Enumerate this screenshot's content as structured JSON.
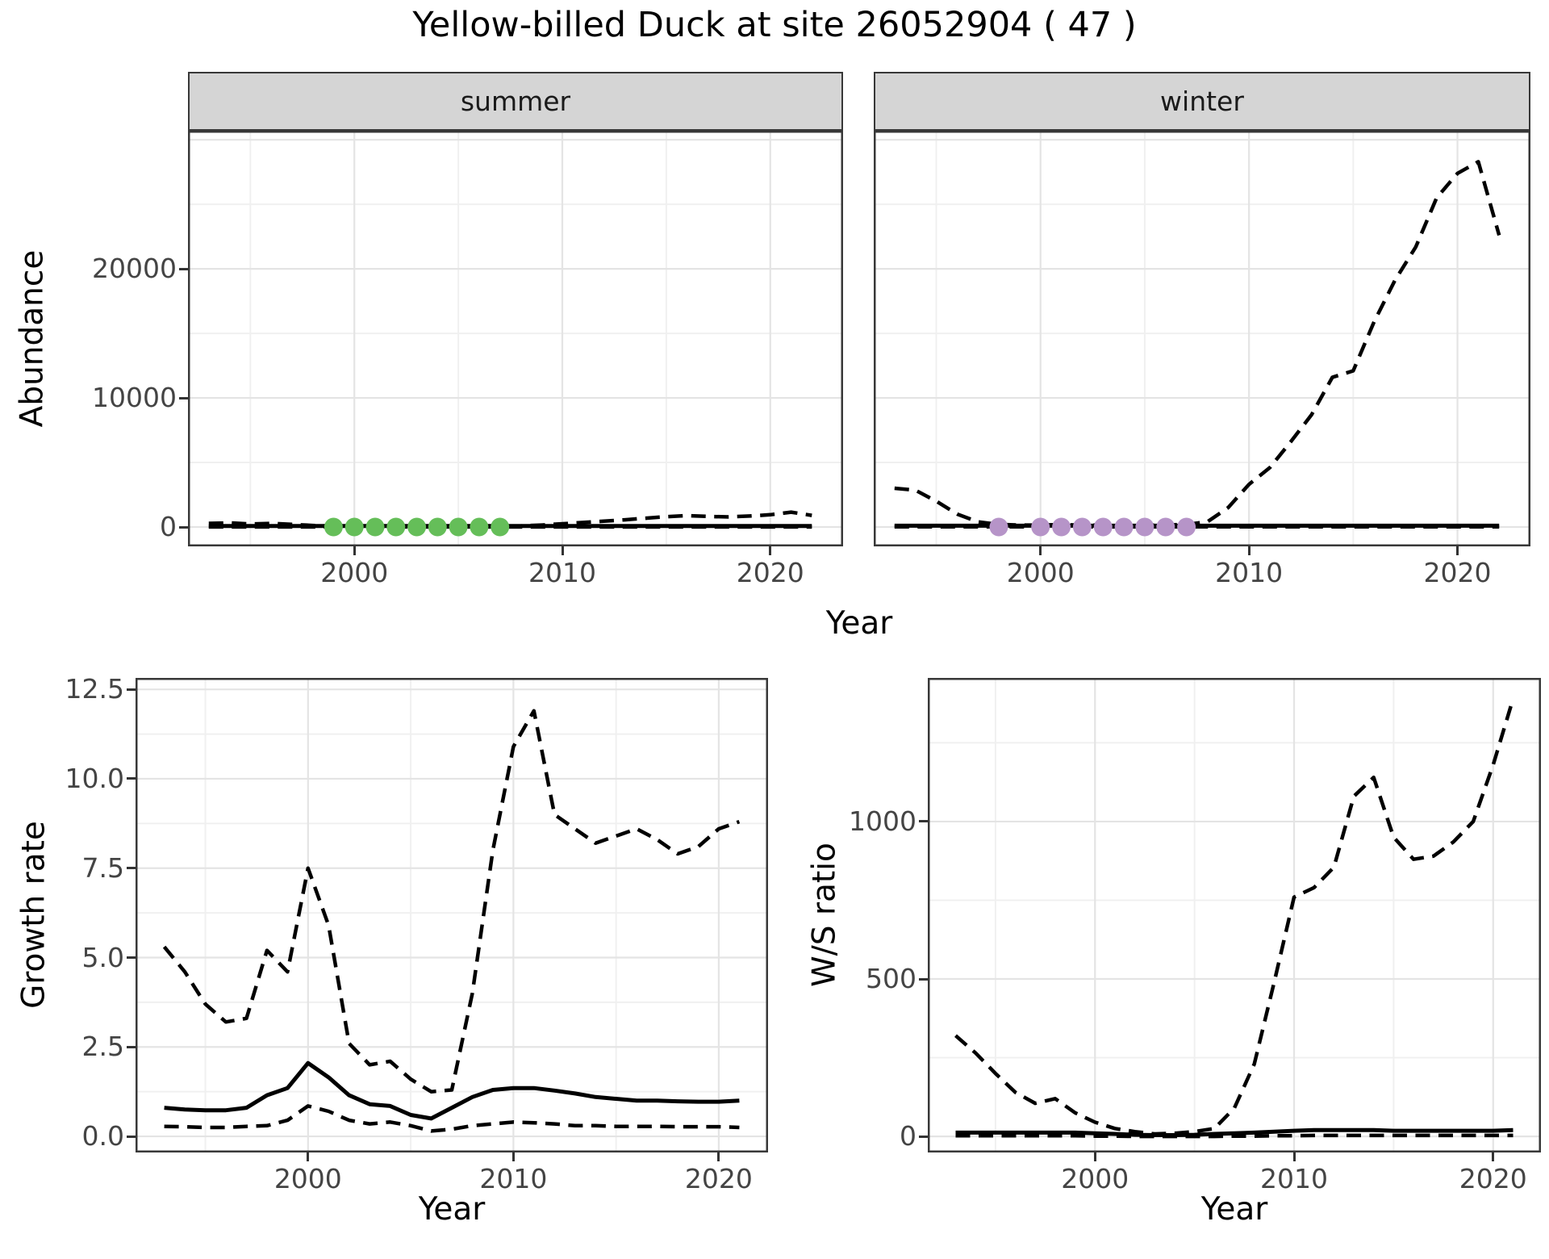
{
  "title": "Yellow-billed Duck at site 26052904 ( 47 )",
  "axes": {
    "abundance_y": "Abundance",
    "top_x": "Year",
    "growth_y": "Growth rate",
    "growth_x": "Year",
    "ws_y": "W/S ratio",
    "ws_x": "Year"
  },
  "colors": {
    "summer_points": "#65BE59",
    "winter_points": "#B694C8",
    "line": "#000000",
    "strip_bg": "#D5D5D5",
    "gridline": "#E4E4E4"
  },
  "chart_data": [
    {
      "id": "abundance_summer",
      "type": "line",
      "facet_label": "summer",
      "xlabel": "Year",
      "ylabel": "Abundance",
      "xlim": [
        1992,
        2023.5
      ],
      "ylim": [
        -1500,
        30700
      ],
      "xticks": [
        2000,
        2010,
        2020
      ],
      "xtick_labels": [
        "2000",
        "2010",
        "2020"
      ],
      "xticks_minor": [
        1995,
        2005,
        2015
      ],
      "yticks": [
        0,
        10000,
        20000
      ],
      "ytick_labels": [
        "0",
        "10000",
        "20000"
      ],
      "yticks_minor": [
        5000,
        15000,
        25000
      ],
      "ygrid_extra": [
        30000
      ],
      "x": [
        1993,
        1994,
        1995,
        1996,
        1997,
        1998,
        1999,
        2000,
        2001,
        2002,
        2003,
        2004,
        2005,
        2006,
        2007,
        2008,
        2009,
        2010,
        2011,
        2012,
        2013,
        2014,
        2015,
        2016,
        2017,
        2018,
        2019,
        2020,
        2021,
        2022
      ],
      "series": [
        {
          "name": "upper_ci",
          "style": "dashed",
          "values": [
            280,
            320,
            230,
            280,
            200,
            120,
            60,
            60,
            60,
            60,
            60,
            60,
            60,
            60,
            60,
            80,
            150,
            250,
            350,
            450,
            560,
            680,
            800,
            880,
            820,
            780,
            850,
            950,
            1150,
            900
          ]
        },
        {
          "name": "lower_ci",
          "style": "dashed",
          "values": [
            5,
            5,
            5,
            5,
            5,
            5,
            5,
            5,
            5,
            5,
            5,
            5,
            5,
            5,
            5,
            5,
            5,
            5,
            5,
            5,
            5,
            5,
            5,
            5,
            5,
            5,
            5,
            5,
            5,
            5
          ]
        },
        {
          "name": "median",
          "style": "solid",
          "values": [
            80,
            80,
            80,
            80,
            80,
            80,
            80,
            80,
            80,
            80,
            80,
            80,
            80,
            80,
            80,
            80,
            80,
            80,
            80,
            80,
            80,
            80,
            80,
            80,
            80,
            80,
            80,
            80,
            80,
            80
          ]
        }
      ],
      "points": {
        "name": "observed",
        "color": "#65BE59",
        "x": [
          1999,
          2000,
          2001,
          2002,
          2003,
          2004,
          2005,
          2006,
          2007
        ],
        "y": [
          0,
          0,
          0,
          0,
          0,
          0,
          0,
          0,
          0
        ]
      }
    },
    {
      "id": "abundance_winter",
      "type": "line",
      "facet_label": "winter",
      "xlabel": "Year",
      "ylabel": "Abundance",
      "xlim": [
        1992,
        2023.5
      ],
      "ylim": [
        -1500,
        30700
      ],
      "xticks": [
        2000,
        2010,
        2020
      ],
      "xtick_labels": [
        "2000",
        "2010",
        "2020"
      ],
      "xticks_minor": [
        1995,
        2005,
        2015
      ],
      "yticks": [
        0,
        10000,
        20000
      ],
      "ytick_labels": [
        "0",
        "10000",
        "20000"
      ],
      "yticks_minor": [
        5000,
        15000,
        25000
      ],
      "ygrid_extra": [
        30000
      ],
      "x": [
        1993,
        1994,
        1995,
        1996,
        1997,
        1998,
        1999,
        2000,
        2001,
        2002,
        2003,
        2004,
        2005,
        2006,
        2007,
        2008,
        2009,
        2010,
        2011,
        2012,
        2013,
        2014,
        2015,
        2016,
        2017,
        2018,
        2019,
        2020,
        2021,
        2022
      ],
      "series": [
        {
          "name": "upper_ci",
          "style": "dashed",
          "values": [
            3000,
            2850,
            2000,
            1000,
            400,
            200,
            150,
            150,
            180,
            150,
            150,
            180,
            150,
            150,
            200,
            400,
            1500,
            3300,
            4600,
            6600,
            8700,
            11600,
            12100,
            15900,
            19100,
            21700,
            25500,
            27400,
            28300,
            22600
          ]
        },
        {
          "name": "lower_ci",
          "style": "dashed",
          "values": [
            10,
            10,
            10,
            10,
            10,
            10,
            10,
            10,
            10,
            10,
            10,
            10,
            10,
            10,
            10,
            10,
            10,
            10,
            10,
            10,
            10,
            10,
            10,
            10,
            10,
            10,
            10,
            10,
            10,
            10
          ]
        },
        {
          "name": "median",
          "style": "solid",
          "values": [
            100,
            100,
            100,
            100,
            100,
            100,
            100,
            100,
            100,
            100,
            100,
            100,
            100,
            100,
            100,
            100,
            100,
            100,
            100,
            100,
            100,
            100,
            100,
            100,
            100,
            100,
            100,
            100,
            100,
            100
          ]
        }
      ],
      "points": {
        "name": "observed",
        "color": "#B694C8",
        "x": [
          1998,
          2000,
          2001,
          2002,
          2003,
          2004,
          2005,
          2006,
          2007
        ],
        "y": [
          0,
          0,
          0,
          0,
          0,
          0,
          0,
          0,
          0
        ]
      }
    },
    {
      "id": "growth",
      "type": "line",
      "xlabel": "Year",
      "ylabel": "Growth rate",
      "xlim": [
        1991.6,
        2022.4
      ],
      "ylim": [
        -0.45,
        12.82
      ],
      "xticks": [
        2000,
        2010,
        2020
      ],
      "xtick_labels": [
        "2000",
        "2010",
        "2020"
      ],
      "xticks_minor": [
        1995,
        2005,
        2015
      ],
      "yticks": [
        0,
        2.5,
        5,
        7.5,
        10,
        12.5
      ],
      "ytick_labels": [
        "0.0",
        "2.5",
        "5.0",
        "7.5",
        "10.0",
        "12.5"
      ],
      "yticks_minor": [
        1.25,
        3.75,
        6.25,
        8.75,
        11.25
      ],
      "ygrid_extra": [],
      "x": [
        1993,
        1994,
        1995,
        1996,
        1997,
        1998,
        1999,
        2000,
        2001,
        2002,
        2003,
        2004,
        2005,
        2006,
        2007,
        2008,
        2009,
        2010,
        2011,
        2012,
        2013,
        2014,
        2015,
        2016,
        2017,
        2018,
        2019,
        2020,
        2021
      ],
      "series": [
        {
          "name": "upper_ci",
          "style": "dashed",
          "values": [
            5.3,
            4.6,
            3.7,
            3.2,
            3.3,
            5.2,
            4.6,
            7.5,
            5.9,
            2.6,
            2.0,
            2.1,
            1.6,
            1.25,
            1.3,
            4.0,
            8.0,
            10.9,
            11.9,
            9.0,
            8.6,
            8.2,
            8.4,
            8.6,
            8.3,
            7.9,
            8.1,
            8.6,
            8.8
          ]
        },
        {
          "name": "lower_ci",
          "style": "dashed",
          "values": [
            0.28,
            0.27,
            0.25,
            0.25,
            0.28,
            0.3,
            0.45,
            0.85,
            0.7,
            0.45,
            0.35,
            0.4,
            0.3,
            0.15,
            0.2,
            0.3,
            0.35,
            0.4,
            0.38,
            0.35,
            0.3,
            0.3,
            0.28,
            0.28,
            0.28,
            0.27,
            0.27,
            0.27,
            0.25
          ]
        },
        {
          "name": "median",
          "style": "solid",
          "values": [
            0.8,
            0.75,
            0.73,
            0.73,
            0.8,
            1.15,
            1.35,
            2.05,
            1.65,
            1.15,
            0.9,
            0.85,
            0.6,
            0.5,
            0.8,
            1.1,
            1.3,
            1.35,
            1.35,
            1.28,
            1.2,
            1.1,
            1.05,
            1.0,
            1.0,
            0.98,
            0.97,
            0.97,
            1.0
          ]
        }
      ]
    },
    {
      "id": "ws",
      "type": "line",
      "xlabel": "Year",
      "ylabel": "W/S ratio",
      "xlim": [
        1991.6,
        2022.4
      ],
      "ylim": [
        -51,
        1456
      ],
      "xticks": [
        2000,
        2010,
        2020
      ],
      "xtick_labels": [
        "2000",
        "2010",
        "2020"
      ],
      "xticks_minor": [
        1995,
        2005,
        2015
      ],
      "yticks": [
        0,
        500,
        1000
      ],
      "ytick_labels": [
        "0",
        "500",
        "1000"
      ],
      "yticks_minor": [
        250,
        750,
        1250
      ],
      "ygrid_extra": [],
      "x": [
        1993,
        1994,
        1995,
        1996,
        1997,
        1998,
        1999,
        2000,
        2001,
        2002,
        2003,
        2004,
        2005,
        2006,
        2007,
        2008,
        2009,
        2010,
        2011,
        2012,
        2013,
        2014,
        2015,
        2016,
        2017,
        2018,
        2019,
        2020,
        2021
      ],
      "series": [
        {
          "name": "upper_ci",
          "style": "dashed",
          "values": [
            320,
            265,
            200,
            140,
            105,
            120,
            75,
            45,
            25,
            15,
            8,
            10,
            15,
            25,
            90,
            230,
            490,
            760,
            790,
            855,
            1080,
            1140,
            950,
            880,
            890,
            935,
            1000,
            1180,
            1390
          ]
        },
        {
          "name": "lower_ci",
          "style": "dashed",
          "values": [
            2,
            2,
            2,
            2,
            2,
            2,
            2,
            1,
            1,
            0,
            0,
            0,
            0,
            0,
            1,
            1,
            2,
            2,
            3,
            3,
            3,
            3,
            3,
            3,
            3,
            3,
            3,
            3,
            3
          ]
        },
        {
          "name": "median",
          "style": "solid",
          "values": [
            12,
            12,
            12,
            12,
            12,
            12,
            12,
            10,
            8,
            5,
            4,
            4,
            5,
            8,
            10,
            12,
            15,
            18,
            20,
            20,
            20,
            20,
            18,
            18,
            18,
            18,
            18,
            18,
            20
          ]
        }
      ]
    }
  ]
}
